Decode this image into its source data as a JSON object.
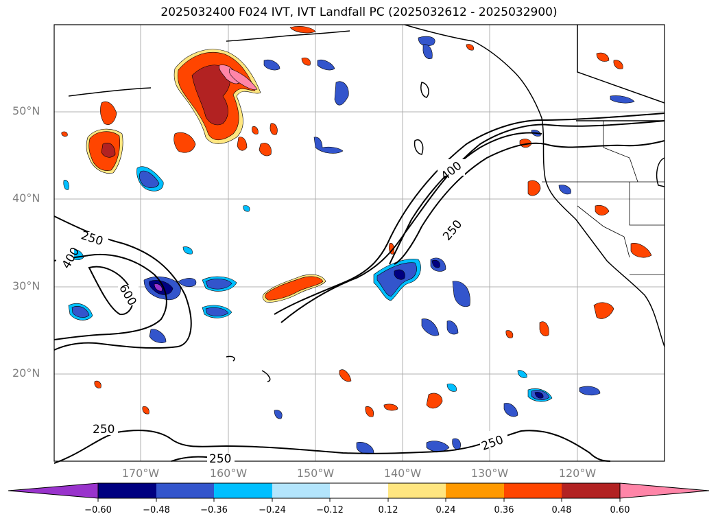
{
  "title": "2025032400 F024 IVT, IVT Landfall PC (2025032612 - 2025032900)",
  "lat_labels": [
    "50°N",
    "40°N",
    "30°N",
    "20°N"
  ],
  "lon_labels": [
    "170°W",
    "160°W",
    "150°W",
    "140°W",
    "130°W",
    "120°W"
  ],
  "contour_labels": {
    "c250_nw": "250",
    "c400_w": "400",
    "c600_w": "600",
    "c400_ne": "400",
    "c250_ne": "250",
    "c250_sw": "250",
    "c250_s": "250",
    "c250_se": "250"
  },
  "colorbar": {
    "ticks": [
      "−0.60",
      "−0.48",
      "−0.36",
      "−0.24",
      "−0.12",
      "0.12",
      "0.24",
      "0.36",
      "0.48",
      "0.60"
    ],
    "colors": [
      "#9933cc",
      "#000080",
      "#3355cc",
      "#00bfff",
      "#b3e5fc",
      "#ffffff",
      "#ffe680",
      "#ff9900",
      "#ff4500",
      "#b22222",
      "#ff85a8"
    ]
  },
  "fill_colors": {
    "pos_low": "#ffe680",
    "pos_mid": "#ff9900",
    "pos_high": "#ff4500",
    "pos_vhigh": "#b22222",
    "pos_max": "#ff85a8",
    "neg_low": "#b3e5fc",
    "neg_mid": "#00bfff",
    "neg_high": "#3355cc",
    "neg_vhigh": "#000080",
    "neg_max": "#9933cc"
  }
}
